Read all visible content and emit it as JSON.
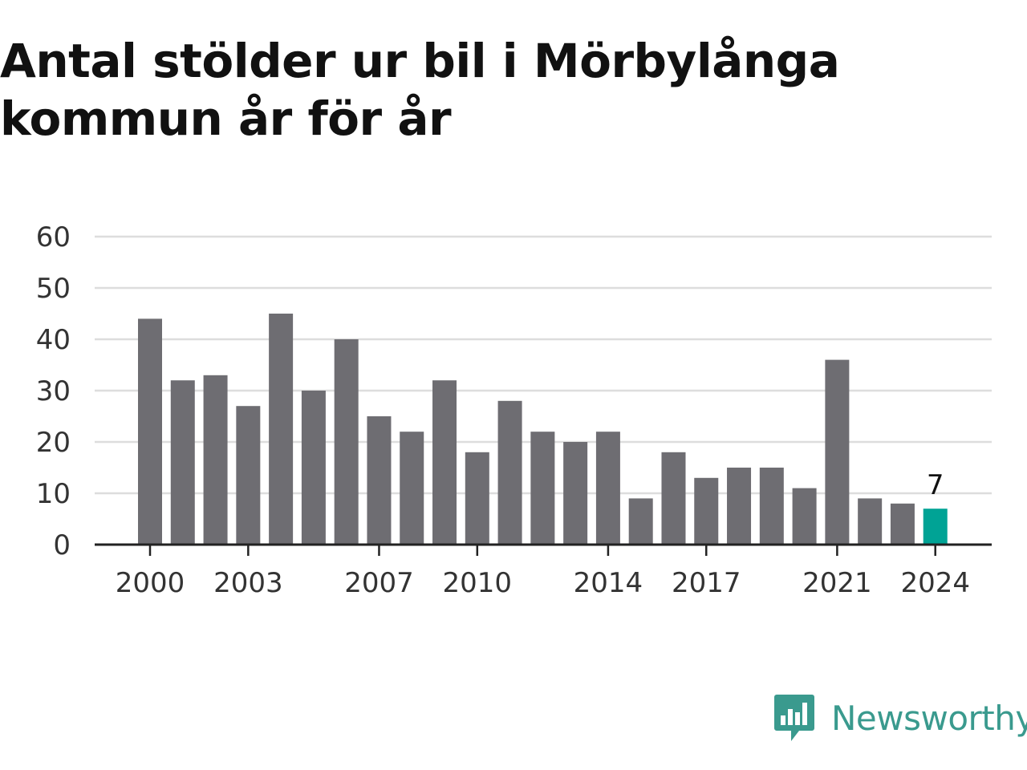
{
  "chart_data": {
    "type": "bar",
    "title": "Antal stölder ur bil i Mörbylånga kommun år för år",
    "categories": [
      "2000",
      "2001",
      "2002",
      "2003",
      "2004",
      "2005",
      "2006",
      "2007",
      "2008",
      "2009",
      "2010",
      "2011",
      "2012",
      "2013",
      "2014",
      "2015",
      "2016",
      "2017",
      "2018",
      "2019",
      "2020",
      "2021",
      "2022",
      "2023",
      "2024"
    ],
    "values": [
      44,
      32,
      33,
      27,
      45,
      30,
      40,
      25,
      22,
      32,
      18,
      28,
      22,
      20,
      22,
      9,
      18,
      13,
      15,
      15,
      11,
      36,
      9,
      8,
      7
    ],
    "x_tick_labels": [
      "2000",
      "2003",
      "2007",
      "2010",
      "2014",
      "2017",
      "2021",
      "2024"
    ],
    "y_ticks": [
      0,
      10,
      20,
      30,
      40,
      50,
      60
    ],
    "ylim": [
      0,
      60
    ],
    "grid": true,
    "highlight": {
      "category": "2024",
      "label": "7"
    },
    "colors": {
      "bar": "#6e6d72",
      "highlight": "#00a395",
      "grid": "#dddddd",
      "axis": "#222222"
    }
  },
  "brand": {
    "name": "Newsworthy",
    "icon": "newsworthy-logo-icon",
    "color": "#3a9a8e"
  }
}
